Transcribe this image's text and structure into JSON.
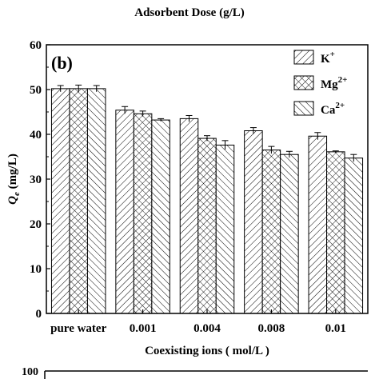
{
  "chart_data": {
    "type": "bar",
    "top_title": "Adsorbent Dose (g/L)",
    "panel_label": "(b)",
    "next_panel_tick": "100",
    "xlabel": "Coexisting ions ( mol/L )",
    "ylabel": "Qe (mg/L)",
    "ylim": [
      0,
      60
    ],
    "yticks": [
      "0",
      "10",
      "20",
      "30",
      "40",
      "50",
      "60"
    ],
    "categories": [
      "pure water",
      "0.001",
      "0.004",
      "0.008",
      "0.01"
    ],
    "legend_position": "top-right",
    "series": [
      {
        "name": "K+",
        "values": [
          50.2,
          45.4,
          43.5,
          40.8,
          39.6
        ],
        "errors": [
          0.7,
          0.8,
          0.7,
          0.7,
          0.8
        ],
        "pattern": "diag-right"
      },
      {
        "name": "Mg2+",
        "values": [
          50.2,
          44.6,
          39.1,
          36.5,
          36.1
        ],
        "errors": [
          0.8,
          0.6,
          0.6,
          0.8,
          0.2
        ],
        "pattern": "cross"
      },
      {
        "name": "Ca2+",
        "values": [
          50.2,
          43.2,
          37.6,
          35.5,
          34.7
        ],
        "errors": [
          0.7,
          0.3,
          1.0,
          0.7,
          0.8
        ],
        "pattern": "diag-left"
      }
    ]
  }
}
